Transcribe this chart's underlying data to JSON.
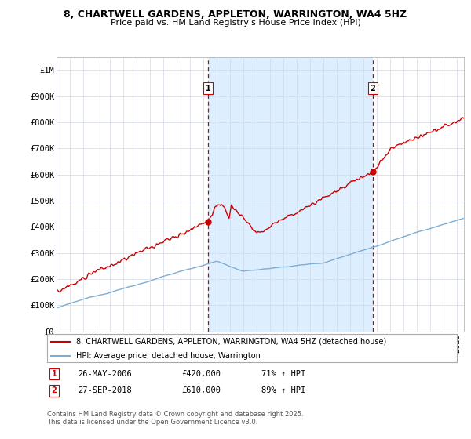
{
  "title": "8, CHARTWELL GARDENS, APPLETON, WARRINGTON, WA4 5HZ",
  "subtitle": "Price paid vs. HM Land Registry's House Price Index (HPI)",
  "legend_line1": "8, CHARTWELL GARDENS, APPLETON, WARRINGTON, WA4 5HZ (detached house)",
  "legend_line2": "HPI: Average price, detached house, Warrington",
  "marker1_date": "26-MAY-2006",
  "marker1_price": 420000,
  "marker1_label": "£420,000",
  "marker1_hpi": "71% ↑ HPI",
  "marker2_date": "27-SEP-2018",
  "marker2_price": 610000,
  "marker2_label": "£610,000",
  "marker2_hpi": "89% ↑ HPI",
  "footer": "Contains HM Land Registry data © Crown copyright and database right 2025.\nThis data is licensed under the Open Government Licence v3.0.",
  "red_color": "#cc0000",
  "blue_color": "#7dadd4",
  "shade_color": "#ddeeff",
  "marker_line_color": "#cc0000",
  "y_ticks": [
    0,
    100000,
    200000,
    300000,
    400000,
    500000,
    600000,
    700000,
    800000,
    900000,
    1000000
  ],
  "y_labels": [
    "£0",
    "£100K",
    "£200K",
    "£300K",
    "£400K",
    "£500K",
    "£600K",
    "£700K",
    "£800K",
    "£900K",
    "£1M"
  ],
  "x_start_year": 1995,
  "x_end_year": 2025,
  "background_color": "#ffffff",
  "grid_color": "#d0d8e8"
}
